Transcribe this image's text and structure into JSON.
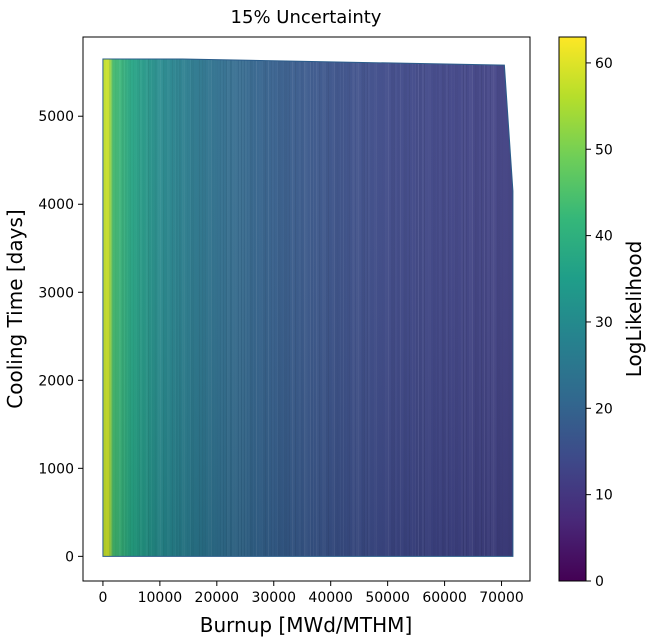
{
  "chart_data": {
    "type": "heatmap",
    "title": "15% Uncertainty",
    "xlabel": "Burnup [MWd/MTHM]",
    "ylabel": "Cooling Time [days]",
    "colorbar_label": "LogLikelihood",
    "colormap": "viridis",
    "xlim": [
      -3500,
      75000
    ],
    "ylim": [
      -280,
      5900
    ],
    "xticks": [
      0,
      10000,
      20000,
      30000,
      40000,
      50000,
      60000,
      70000
    ],
    "yticks": [
      0,
      1000,
      2000,
      3000,
      4000,
      5000
    ],
    "clim": [
      0,
      63
    ],
    "cticks": [
      0,
      10,
      20,
      30,
      40,
      50,
      60
    ],
    "grid": false,
    "domain_outline": [
      [
        0,
        0
      ],
      [
        72000,
        0
      ],
      [
        72000,
        4150
      ],
      [
        70500,
        5580
      ],
      [
        14000,
        5650
      ],
      [
        0,
        5650
      ]
    ],
    "burnup_profile": [
      {
        "burnup": 0,
        "loglikelihood": 57
      },
      {
        "burnup": 1000,
        "loglikelihood": 58
      },
      {
        "burnup": 1800,
        "loglikelihood": 44
      },
      {
        "burnup": 5000,
        "loglikelihood": 37
      },
      {
        "burnup": 10000,
        "loglikelihood": 30
      },
      {
        "burnup": 15000,
        "loglikelihood": 26
      },
      {
        "burnup": 20000,
        "loglikelihood": 23
      },
      {
        "burnup": 30000,
        "loglikelihood": 19
      },
      {
        "burnup": 40000,
        "loglikelihood": 16
      },
      {
        "burnup": 50000,
        "loglikelihood": 14
      },
      {
        "burnup": 60000,
        "loglikelihood": 13
      },
      {
        "burnup": 72000,
        "loglikelihood": 12
      }
    ]
  },
  "colors": {
    "viridis_stops": [
      "#440154",
      "#482878",
      "#3e4989",
      "#31688e",
      "#26828e",
      "#1f9e89",
      "#35b779",
      "#6ece58",
      "#b5de2b",
      "#fde725"
    ]
  }
}
